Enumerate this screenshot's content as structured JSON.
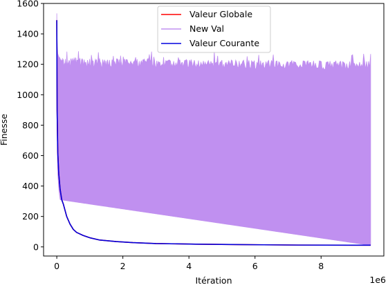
{
  "chart_data": {
    "type": "line",
    "title": "",
    "xlabel": "Itération",
    "ylabel": "Finesse",
    "x_offset_label": "1e6",
    "xlim": [
      -400000,
      9900000
    ],
    "ylim": [
      -60,
      1600
    ],
    "x_ticks": [
      0,
      2000000,
      4000000,
      6000000,
      8000000
    ],
    "x_tick_labels": [
      "0",
      "2",
      "4",
      "6",
      "8"
    ],
    "y_ticks": [
      0,
      200,
      400,
      600,
      800,
      1000,
      1200,
      1400,
      1600
    ],
    "y_tick_labels": [
      "0",
      "200",
      "400",
      "600",
      "800",
      "1000",
      "1200",
      "1400",
      "1600"
    ],
    "grid": false,
    "legend_position": "top-center",
    "series": [
      {
        "name": "Valeur Globale",
        "color": "#ff0000",
        "x": [
          0,
          10000,
          30000,
          60000,
          100000,
          150000,
          200000,
          300000,
          400000,
          500000,
          600000,
          800000,
          1000000,
          1300000,
          1800000,
          2300000,
          3000000,
          4200000,
          5500000,
          7300000,
          9500000
        ],
        "y": [
          1490,
          900,
          620,
          480,
          380,
          310,
          280,
          200,
          150,
          115,
          95,
          75,
          60,
          45,
          35,
          28,
          22,
          18,
          15,
          12,
          11
        ]
      },
      {
        "name": "New Val",
        "color": "#c090f0",
        "envelope": {
          "x": [
            0,
            5000,
            15000,
            30000,
            60000,
            100000,
            9500000
          ],
          "upper": [
            1535,
            1420,
            1330,
            1270,
            1250,
            1240,
            1220
          ],
          "lower": [
            1490,
            900,
            620,
            480,
            380,
            310,
            10
          ],
          "upper_noise": 60
        }
      },
      {
        "name": "Valeur Courante",
        "color": "#0000dd",
        "x": [
          0,
          10000,
          30000,
          60000,
          100000,
          150000,
          200000,
          300000,
          400000,
          500000,
          600000,
          800000,
          1000000,
          1300000,
          1800000,
          2300000,
          3000000,
          4200000,
          5500000,
          7300000,
          9500000
        ],
        "y": [
          1490,
          900,
          620,
          480,
          380,
          310,
          280,
          200,
          150,
          115,
          95,
          75,
          60,
          45,
          35,
          28,
          22,
          18,
          15,
          12,
          11
        ]
      }
    ]
  }
}
